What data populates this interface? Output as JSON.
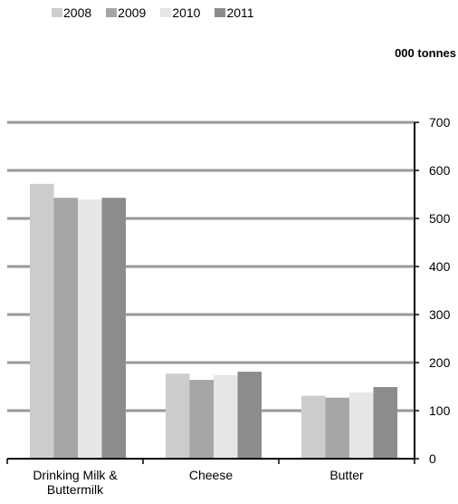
{
  "chart_data": {
    "type": "bar",
    "categories": [
      "Drinking Milk & Buttermilk",
      "Cheese",
      "Butter"
    ],
    "category_lines": [
      [
        "Drinking Milk &",
        "Buttermilk"
      ],
      [
        "Cheese"
      ],
      [
        "Butter"
      ]
    ],
    "series": [
      {
        "name": "2008",
        "color": "#cccccc",
        "values": [
          572,
          177,
          131
        ]
      },
      {
        "name": "2009",
        "color": "#a6a6a6",
        "values": [
          543,
          164,
          127
        ]
      },
      {
        "name": "2010",
        "color": "#e6e6e6",
        "values": [
          539,
          174,
          138
        ]
      },
      {
        "name": "2011",
        "color": "#8c8c8c",
        "values": [
          543,
          181,
          149
        ]
      }
    ],
    "unit_label": "000 tonnes",
    "ylim": [
      0,
      700
    ],
    "yticks": [
      0,
      100,
      200,
      300,
      400,
      500,
      600,
      700
    ],
    "ytick_labels": [
      "0",
      "100",
      "200",
      "300",
      "400",
      "500",
      "600",
      "700"
    ],
    "y_axis_position": "right",
    "legend_position": "top-left",
    "grid": true,
    "gridline_color": "#999999"
  }
}
